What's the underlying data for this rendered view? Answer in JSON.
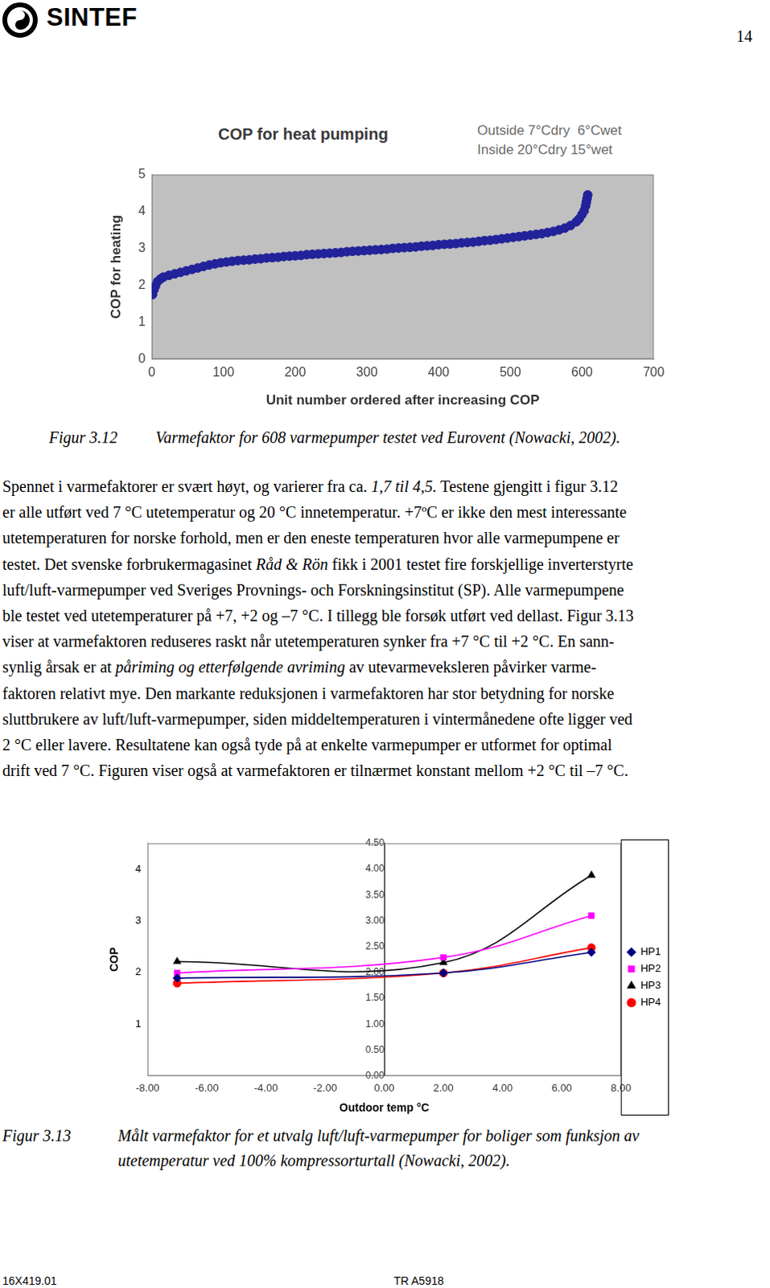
{
  "header": {
    "logo": "SINTEF",
    "page": "14"
  },
  "chart_data": [
    {
      "type": "scatter",
      "title": "COP for heat pumping",
      "annotations": [
        "Outside 7°Cdry  6°Cwet",
        "Inside 20°Cdry 15°wet"
      ],
      "xlabel": "Unit number ordered after increasing COP",
      "ylabel": "COP for heating",
      "x": [
        1,
        3,
        5,
        8,
        12,
        16,
        24,
        32,
        40,
        48,
        56,
        64,
        72,
        80,
        88,
        96,
        104,
        112,
        120,
        128,
        136,
        144,
        152,
        160,
        168,
        176,
        184,
        192,
        200,
        208,
        216,
        224,
        232,
        240,
        248,
        256,
        264,
        272,
        280,
        288,
        296,
        304,
        312,
        320,
        328,
        336,
        344,
        352,
        360,
        368,
        376,
        384,
        392,
        400,
        408,
        416,
        424,
        432,
        440,
        448,
        456,
        464,
        472,
        480,
        488,
        496,
        504,
        512,
        520,
        528,
        536,
        544,
        552,
        560,
        568,
        576,
        584,
        592,
        596,
        600,
        603,
        605,
        606,
        607,
        608
      ],
      "values": [
        1.75,
        1.88,
        1.98,
        2.1,
        2.17,
        2.22,
        2.27,
        2.31,
        2.35,
        2.39,
        2.43,
        2.47,
        2.51,
        2.55,
        2.58,
        2.61,
        2.63,
        2.65,
        2.67,
        2.68,
        2.69,
        2.71,
        2.72,
        2.74,
        2.75,
        2.76,
        2.78,
        2.79,
        2.8,
        2.81,
        2.83,
        2.84,
        2.85,
        2.86,
        2.87,
        2.88,
        2.89,
        2.91,
        2.92,
        2.93,
        2.94,
        2.95,
        2.96,
        2.97,
        2.98,
        3.0,
        3.01,
        3.02,
        3.03,
        3.04,
        3.06,
        3.07,
        3.08,
        3.1,
        3.11,
        3.12,
        3.13,
        3.15,
        3.16,
        3.17,
        3.19,
        3.21,
        3.22,
        3.24,
        3.26,
        3.28,
        3.3,
        3.32,
        3.34,
        3.36,
        3.38,
        3.4,
        3.43,
        3.46,
        3.5,
        3.55,
        3.62,
        3.72,
        3.8,
        3.92,
        4.02,
        4.15,
        4.25,
        4.35,
        4.45
      ],
      "color": "#22229a",
      "marker": "circle",
      "xlim": [
        0,
        700
      ],
      "xticks": [
        0,
        100,
        200,
        300,
        400,
        500,
        600,
        700
      ],
      "ylim": [
        0,
        5
      ],
      "yticks": [
        0,
        1,
        2,
        3,
        4,
        5
      ],
      "grid": false
    },
    {
      "type": "line",
      "xlabel": "Outdoor temp °C",
      "ylabel": "COP",
      "x": [
        -7,
        2,
        7
      ],
      "series": [
        {
          "name": "HP1",
          "color": "#000080",
          "marker": "diamond",
          "values": [
            1.89,
            1.99,
            2.39
          ]
        },
        {
          "name": "HP2",
          "color": "#ff00ff",
          "marker": "square",
          "values": [
            1.99,
            2.29,
            3.1
          ]
        },
        {
          "name": "HP3",
          "color": "#000000",
          "marker": "triangle",
          "values": [
            2.21,
            2.19,
            3.88
          ]
        },
        {
          "name": "HP4",
          "color": "#ff0000",
          "marker": "circle",
          "values": [
            1.79,
            1.99,
            2.48
          ]
        }
      ],
      "line_style": "smooth",
      "xlim": [
        -8,
        8
      ],
      "xticks": [
        {
          "value": -8,
          "label": "-8.00"
        },
        {
          "value": -6,
          "label": "-6.00"
        },
        {
          "value": -4,
          "label": "-4.00"
        },
        {
          "value": -2,
          "label": "-2.00"
        },
        {
          "value": 0,
          "label": "0.00"
        },
        {
          "value": 2,
          "label": "2.00"
        },
        {
          "value": 4,
          "label": "4.00"
        },
        {
          "value": 6,
          "label": "6.00"
        },
        {
          "value": 8,
          "label": "8.00"
        }
      ],
      "ylim": [
        0,
        4.5
      ],
      "yticks": [
        1,
        2,
        3,
        4
      ],
      "y2lim": [
        0,
        4.5
      ],
      "y2ticks": [
        {
          "value": 0,
          "label": "0.00"
        },
        {
          "value": 0.5,
          "label": "0.50"
        },
        {
          "value": 1,
          "label": "1.00"
        },
        {
          "value": 1.5,
          "label": "1.50"
        },
        {
          "value": 2,
          "label": "2.00"
        },
        {
          "value": 2.5,
          "label": "2.50"
        },
        {
          "value": 3,
          "label": "3.00"
        },
        {
          "value": 3.5,
          "label": "3.50"
        },
        {
          "value": 4,
          "label": "4.00"
        },
        {
          "value": 4.5,
          "label": "4.50"
        }
      ],
      "grid": false,
      "legend": "right"
    }
  ],
  "captions": [
    {
      "label": "Figur 3.12",
      "lines": [
        "Varmefaktor for 608 varmepumper testet ved Eurovent (Nowacki, 2002)."
      ]
    },
    {
      "label": "Figur 3.13",
      "lines": [
        "Målt varmefaktor for et utvalg luft/luft-varmepumper for boliger som funksjon av",
        "utetemperatur ved 100% kompressorturtall (Nowacki, 2002)."
      ]
    }
  ],
  "body": [
    [
      {
        "text": "Spennet i varmefaktorer er svært høyt, og varierer fra ca. "
      },
      {
        "text": "1,7 til 4,5.",
        "style": "italic"
      },
      {
        "text": " Testene gjengitt i figur 3.12"
      }
    ],
    [
      {
        "text": "er alle utført ved 7 °C utetemperatur og 20 °C innetemperatur. +7ºC er ikke den mest interessante"
      }
    ],
    [
      {
        "text": "utetemperaturen for norske forhold, men er den eneste temperaturen hvor alle varmepumpene er"
      }
    ],
    [
      {
        "text": "testet. Det svenske forbrukermagasinet "
      },
      {
        "text": "Råd & Rön",
        "style": "italic"
      },
      {
        "text": " fikk i 2001 testet fire forskjellige inverterstyrte"
      }
    ],
    [
      {
        "text": "luft/luft-varmepumper ved Sveriges Provnings- och Forskningsinstitut (SP). Alle varmepumpene"
      }
    ],
    [
      {
        "text": "ble testet ved utetemperaturer på +7, +2 og –7 °C. I tillegg ble forsøk utført ved dellast. Figur 3.13"
      }
    ],
    [
      {
        "text": "viser at varmefaktoren reduseres raskt når utetemperaturen synker fra +7 °C til +2 °C. En sann-"
      }
    ],
    [
      {
        "text": "synlig årsak er at "
      },
      {
        "text": "påriming og etterfølgende avriming",
        "style": "italic"
      },
      {
        "text": " av utevarmeveksleren påvirker varme-"
      }
    ],
    [
      {
        "text": "faktoren relativt mye. Den markante reduksjonen i varmefaktoren har stor betydning for norske"
      }
    ],
    [
      {
        "text": "sluttbrukere av luft/luft-varmepumper, siden middeltemperaturen i vintermånedene ofte ligger ved"
      }
    ],
    [
      {
        "text": "2 °C eller lavere. Resultatene kan også tyde på at enkelte varmepumper er utformet for optimal"
      }
    ],
    [
      {
        "text": "drift ved 7 °C. Figuren viser også at varmefaktoren er tilnærmet konstant mellom +2 °C til –7 °C."
      }
    ]
  ],
  "footer": {
    "left": "16X419.01",
    "center": "TR A5918"
  }
}
